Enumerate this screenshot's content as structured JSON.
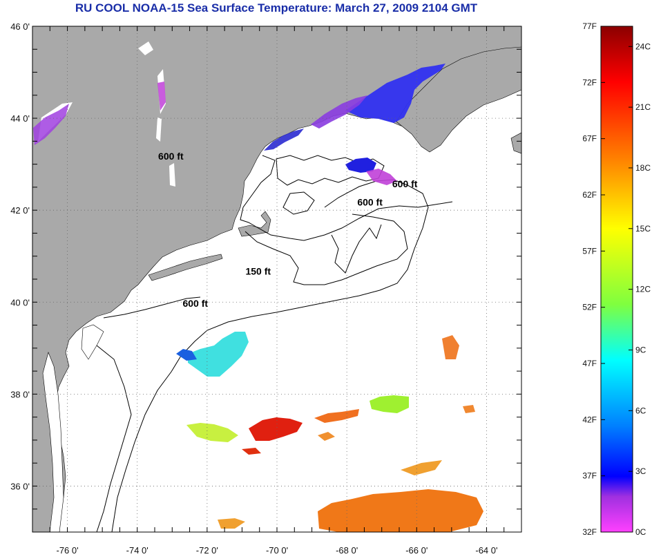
{
  "title": "RU COOL  NOAA-15  Sea Surface Temperature:  March 27, 2009 2104 GMT",
  "map": {
    "lon_range": [
      -77,
      -63
    ],
    "lat_range": [
      35,
      46
    ],
    "lat_ticks": [
      {
        "value": 46,
        "label": "46 0'"
      },
      {
        "value": 44,
        "label": "44 0'"
      },
      {
        "value": 42,
        "label": "42 0'"
      },
      {
        "value": 40,
        "label": "40 0'"
      },
      {
        "value": 38,
        "label": "38 0'"
      },
      {
        "value": 36,
        "label": "36 0'"
      }
    ],
    "lon_ticks": [
      {
        "value": -76,
        "label": "-76 0'"
      },
      {
        "value": -74,
        "label": "-74 0'"
      },
      {
        "value": -72,
        "label": "-72 0'"
      },
      {
        "value": -70,
        "label": "-70 0'"
      },
      {
        "value": -68,
        "label": "-68 0'"
      },
      {
        "value": -66,
        "label": "-66 0'"
      },
      {
        "value": -64,
        "label": "-64 0'"
      }
    ],
    "gridlines": "dotted",
    "colors": {
      "land": "#a9a9a9",
      "ocean": "#ffffff",
      "title": "#1a2ea8",
      "contours": "#000000"
    },
    "depth_labels": [
      {
        "text": "600 ft",
        "lon": -73.4,
        "lat": 43.1
      },
      {
        "text": "600 ft",
        "lon": -66.7,
        "lat": 42.5
      },
      {
        "text": "600 ft",
        "lon": -67.7,
        "lat": 42.1
      },
      {
        "text": "150 ft",
        "lon": -70.9,
        "lat": 40.6
      },
      {
        "text": "600 ft",
        "lon": -72.7,
        "lat": 39.9
      }
    ],
    "sst_patches": [
      {
        "name": "gulf-of-maine-cold-water",
        "lon": -66.6,
        "lat": 44.5,
        "temp_c": 3
      },
      {
        "name": "bay-of-fundy-cold-water",
        "lon": -65.8,
        "lat": 44.9,
        "temp_c": 3
      },
      {
        "name": "georges-bank-cold-water",
        "lon": -67.1,
        "lat": 42.9,
        "temp_c": 3
      },
      {
        "name": "slope-water-patch",
        "lon": -71.8,
        "lat": 38.9,
        "temp_c": 9
      },
      {
        "name": "slope-green-patch",
        "lon": -66.6,
        "lat": 37.9,
        "temp_c": 15
      },
      {
        "name": "gulf-stream-red-patch",
        "lon": -70.2,
        "lat": 37.3,
        "temp_c": 22
      },
      {
        "name": "warm-patch-south",
        "lon": -66.0,
        "lat": 35.5,
        "temp_c": 19
      }
    ]
  },
  "colorbar": {
    "fahrenheit_labels": [
      "77F",
      "72F",
      "67F",
      "62F",
      "57F",
      "52F",
      "47F",
      "42F",
      "37F",
      "32F"
    ],
    "celsius_labels": [
      "24C",
      "21C",
      "18C",
      "15C",
      "12C",
      "9C",
      "6C",
      "3C",
      "0C"
    ],
    "range_f": [
      32,
      77
    ],
    "range_c": [
      0,
      25
    ],
    "stops": [
      "#8b0000",
      "#ff0000",
      "#ff7f00",
      "#ffff00",
      "#7fff3f",
      "#00ffff",
      "#0080ff",
      "#0000ff",
      "#a030e0",
      "#ff40ff"
    ]
  }
}
